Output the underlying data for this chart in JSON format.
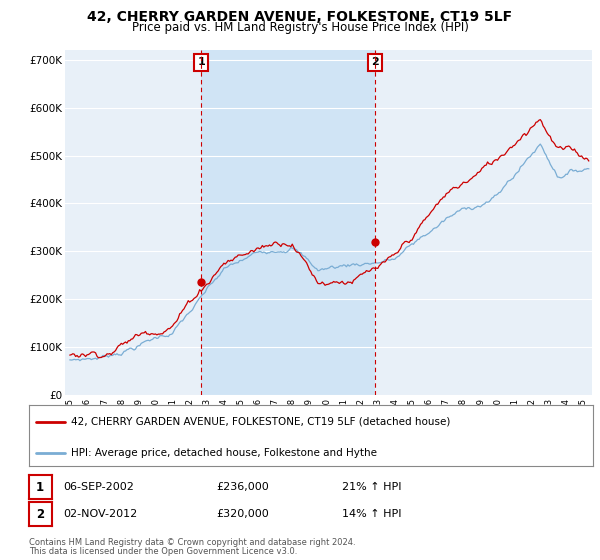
{
  "title": "42, CHERRY GARDEN AVENUE, FOLKESTONE, CT19 5LF",
  "subtitle": "Price paid vs. HM Land Registry's House Price Index (HPI)",
  "ylim": [
    0,
    720000
  ],
  "yticks": [
    0,
    100000,
    200000,
    300000,
    400000,
    500000,
    600000,
    700000
  ],
  "ytick_labels": [
    "£0",
    "£100K",
    "£200K",
    "£300K",
    "£400K",
    "£500K",
    "£600K",
    "£700K"
  ],
  "house_color": "#cc0000",
  "hpi_color": "#7aadd4",
  "shade_color": "#d0e4f5",
  "legend_house": "42, CHERRY GARDEN AVENUE, FOLKESTONE, CT19 5LF (detached house)",
  "legend_hpi": "HPI: Average price, detached house, Folkestone and Hythe",
  "sale1_label": "1",
  "sale1_date": "06-SEP-2002",
  "sale1_price": "£236,000",
  "sale1_hpi": "21% ↑ HPI",
  "sale1_x": 2002.67,
  "sale1_y": 236000,
  "sale2_label": "2",
  "sale2_date": "02-NOV-2012",
  "sale2_price": "£320,000",
  "sale2_hpi": "14% ↑ HPI",
  "sale2_x": 2012.83,
  "sale2_y": 320000,
  "footnote1": "Contains HM Land Registry data © Crown copyright and database right 2024.",
  "footnote2": "This data is licensed under the Open Government Licence v3.0.",
  "bg_color": "#e8f0f8",
  "grid_color": "#ffffff",
  "xlim_left": 1994.7,
  "xlim_right": 2025.5
}
